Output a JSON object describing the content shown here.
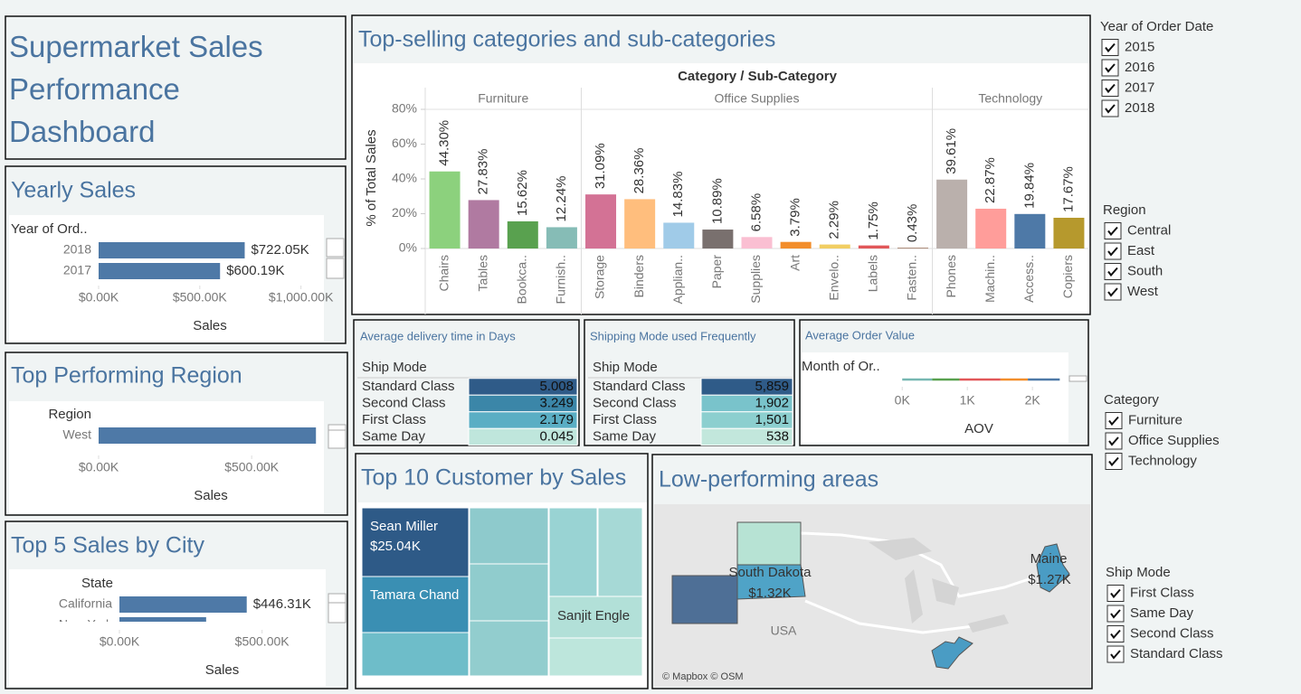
{
  "title": "Supermarket Sales Performance Dashboard",
  "chart_data": [
    {
      "type": "hbar",
      "title": "Yearly Sales",
      "y_label": "Year of Ord..",
      "x_label": "Sales",
      "categories": [
        "2018",
        "2017"
      ],
      "values": [
        722050,
        600190
      ],
      "value_labels": [
        "$722.05K",
        "$600.19K"
      ],
      "color": "#4e79a7",
      "xlim": [
        0,
        1100000
      ],
      "xticks": [
        {
          "value": 0,
          "label": "$0.00K"
        },
        {
          "value": 500000,
          "label": "$500.00K"
        },
        {
          "value": 1000000,
          "label": "$1,000.00K"
        }
      ]
    },
    {
      "type": "grouped-bar",
      "title": "Top-selling categories and sub-categories",
      "header": "Category / Sub-Category",
      "y_label": "% of Total Sales",
      "ylim": [
        0,
        80
      ],
      "yticks": [
        {
          "value": 0,
          "label": "0%"
        },
        {
          "value": 20,
          "label": "20%"
        },
        {
          "value": 40,
          "label": "40%"
        },
        {
          "value": 60,
          "label": "60%"
        },
        {
          "value": 80,
          "label": "80%"
        }
      ],
      "groups": [
        {
          "name": "Furniture",
          "categories": [
            "Chairs",
            "Tables",
            "Bookca..",
            "Furnish.."
          ],
          "values": [
            44.3,
            27.83,
            15.62,
            12.24
          ],
          "value_labels": [
            "44.30%",
            "27.83%",
            "15.62%",
            "12.24%"
          ],
          "colors": [
            "#8cd17d",
            "#b07aa1",
            "#59a14f",
            "#86bcb6"
          ]
        },
        {
          "name": "Office Supplies",
          "categories": [
            "Storage",
            "Binders",
            "Applian..",
            "Paper",
            "Supplies",
            "Art",
            "Envelo..",
            "Labels",
            "Fasten.."
          ],
          "values": [
            31.09,
            28.36,
            14.83,
            10.89,
            6.58,
            3.79,
            2.29,
            1.75,
            0.43
          ],
          "value_labels": [
            "31.09%",
            "28.36%",
            "14.83%",
            "10.89%",
            "6.58%",
            "3.79%",
            "2.29%",
            "1.75%",
            "0.43%"
          ],
          "colors": [
            "#d37295",
            "#ffbe7d",
            "#a0cbe8",
            "#79706e",
            "#fabfd2",
            "#f28e2b",
            "#f1ce63",
            "#e15759",
            "#9d7660"
          ]
        },
        {
          "name": "Technology",
          "categories": [
            "Phones",
            "Machin..",
            "Access..",
            "Copiers"
          ],
          "values": [
            39.61,
            22.87,
            19.84,
            17.67
          ],
          "value_labels": [
            "39.61%",
            "22.87%",
            "19.84%",
            "17.67%"
          ],
          "colors": [
            "#bab0ac",
            "#ff9d9a",
            "#4e79a7",
            "#b6992d"
          ]
        }
      ]
    },
    {
      "type": "hbar",
      "title": "Top Performing Region",
      "y_label": "Region",
      "x_label": "Sales",
      "categories": [
        "West"
      ],
      "values": [
        710000
      ],
      "color": "#4e79a7",
      "xlim": [
        0,
        733000
      ],
      "xticks": [
        {
          "value": 0,
          "label": "$0.00K"
        },
        {
          "value": 500000,
          "label": "$500.00K"
        }
      ]
    },
    {
      "type": "hbar",
      "title": "Top 5 Sales by City",
      "y_label": "State",
      "x_label": "Sales",
      "categories": [
        "California",
        "New York"
      ],
      "values": [
        446310,
        304000
      ],
      "value_labels": [
        "$446.31K",
        null
      ],
      "color": "#4e79a7",
      "xlim": [
        0,
        720000
      ],
      "xticks": [
        {
          "value": 0,
          "label": "$0.00K"
        },
        {
          "value": 500000,
          "label": "$500.00K"
        }
      ]
    },
    {
      "type": "segments",
      "title": "Average Order Value",
      "y_label": "Month of Or..",
      "x_label": "AOV",
      "values": [
        460,
        420,
        630,
        420,
        490
      ],
      "colors": [
        "#76b7b2",
        "#59a14f",
        "#e15759",
        "#f28e2b",
        "#4e79a7"
      ],
      "xlim": [
        -170,
        2540
      ],
      "xticks": [
        {
          "value": 0,
          "label": "0K"
        },
        {
          "value": 1000,
          "label": "1K"
        },
        {
          "value": 2000,
          "label": "2K"
        }
      ]
    },
    {
      "type": "treemap",
      "title": "Top 10 Customer by Sales",
      "labels": [
        "Sean Miller",
        "Tamara Chand",
        null,
        null,
        null,
        null,
        null,
        null,
        "Sanjit Engle",
        null
      ],
      "values": [
        25043,
        19052,
        15117,
        14595,
        14474,
        14175,
        14142,
        12873,
        12209,
        12129
      ],
      "value_labels": [
        "$25.04K",
        null,
        null,
        null,
        null,
        null,
        null,
        null,
        null,
        null
      ],
      "colors": [
        "#2e5a87",
        "#3a8fb3",
        "#6ebdc9",
        "#8ecacc",
        "#90cccd",
        "#92cdce",
        "#99d3d3",
        "#a6d9d6",
        "#b2e0d8",
        "#bde6dc"
      ]
    }
  ],
  "tables": [
    {
      "title": "Average delivery time in Days",
      "column": "Ship Mode",
      "rows": [
        [
          "Standard Class",
          "5.008"
        ],
        [
          "Second Class",
          "3.249"
        ],
        [
          "First Class",
          "2.179"
        ],
        [
          "Same Day",
          "0.045"
        ]
      ],
      "colors": [
        "#2f5b88",
        "#3b86a8",
        "#5aaec4",
        "#bfe6dc"
      ]
    },
    {
      "title": "Shipping Mode used Frequently",
      "column": "Ship Mode",
      "rows": [
        [
          "Standard Class",
          "5,859"
        ],
        [
          "Second Class",
          "1,902"
        ],
        [
          "First Class",
          "1,501"
        ],
        [
          "Same Day",
          "538"
        ]
      ],
      "colors": [
        "#2f5b88",
        "#79c3cb",
        "#8ccfcf",
        "#c2e7dc"
      ]
    }
  ],
  "map": {
    "title": "Low-performing areas",
    "areas": [
      {
        "name": "South Dakota",
        "value_label": "$1.32K"
      },
      {
        "name": "Maine",
        "value_label": "$1.27K"
      }
    ],
    "country": "USA",
    "credit": "© Mapbox © OSM"
  },
  "filters": [
    {
      "title": "Year of Order Date",
      "options": [
        "2015",
        "2016",
        "2017",
        "2018"
      ]
    },
    {
      "title": "Region",
      "options": [
        "Central",
        "East",
        "South",
        "West"
      ]
    },
    {
      "title": "Category",
      "options": [
        "Furniture",
        "Office Supplies",
        "Technology"
      ]
    },
    {
      "title": "Ship Mode",
      "options": [
        "First Class",
        "Same Day",
        "Second Class",
        "Standard Class"
      ]
    }
  ]
}
